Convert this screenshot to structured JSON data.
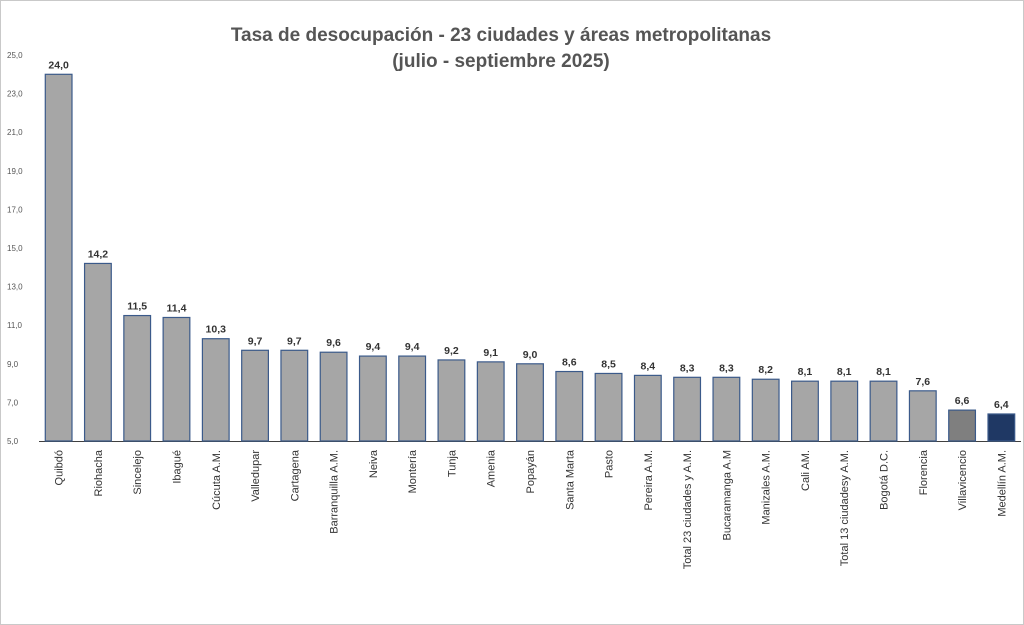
{
  "chart_data": {
    "type": "bar",
    "title": "Tasa de desocupación - 23 ciudades y áreas metropolitanas",
    "subtitle": "(julio - septiembre 2025)",
    "xlabel": "",
    "ylabel": "",
    "ylim": [
      5,
      25
    ],
    "yticks": [
      "5,0",
      "7,0",
      "9,0",
      "11,0",
      "13,0",
      "15,0",
      "17,0",
      "19,0",
      "21,0",
      "23,0",
      "25,0"
    ],
    "grid": false,
    "legend": "none",
    "categories": [
      "Quibdó",
      "Riohacha",
      "Sincelejo",
      "Ibagué",
      "Cúcuta A.M.",
      "Valledupar",
      "Cartagena",
      "Barranquilla A.M.",
      "Neiva",
      "Montería",
      "Tunja",
      "Amenia",
      "Popayán",
      "Santa Marta",
      "Pasto",
      "Pereira A.M.",
      "Total 23 ciudades y A.M.",
      "Bucaramanga A.M",
      "Manizales A.M.",
      "Cali AM.",
      "Total 13 ciudadesy A.M.",
      "Bogotá D.C.",
      "Florencia",
      "Villavicencio",
      "Medellín A.M."
    ],
    "values": [
      24.0,
      14.2,
      11.5,
      11.4,
      10.3,
      9.7,
      9.7,
      9.6,
      9.4,
      9.4,
      9.2,
      9.1,
      9.0,
      8.6,
      8.5,
      8.4,
      8.3,
      8.3,
      8.2,
      8.1,
      8.1,
      8.1,
      7.6,
      6.6,
      6.4
    ],
    "value_labels": [
      "24,0",
      "14,2",
      "11,5",
      "11,4",
      "10,3",
      "9,7",
      "9,7",
      "9,6",
      "9,4",
      "9,4",
      "9,2",
      "9,1",
      "9,0",
      "8,6",
      "8,5",
      "8,4",
      "8,3",
      "8,3",
      "8,2",
      "8,1",
      "8,1",
      "8,1",
      "7,6",
      "6,6",
      "6,4"
    ],
    "bar_colors": [
      "#a6a6a6",
      "#a6a6a6",
      "#a6a6a6",
      "#a6a6a6",
      "#a6a6a6",
      "#a6a6a6",
      "#a6a6a6",
      "#a6a6a6",
      "#a6a6a6",
      "#a6a6a6",
      "#a6a6a6",
      "#a6a6a6",
      "#a6a6a6",
      "#a6a6a6",
      "#a6a6a6",
      "#a6a6a6",
      "#a6a6a6",
      "#a6a6a6",
      "#a6a6a6",
      "#a6a6a6",
      "#a6a6a6",
      "#a6a6a6",
      "#a6a6a6",
      "#7f7f7f",
      "#1f3864"
    ],
    "bar_border_color": "#3b5a8a",
    "axis_color": "#404040"
  }
}
